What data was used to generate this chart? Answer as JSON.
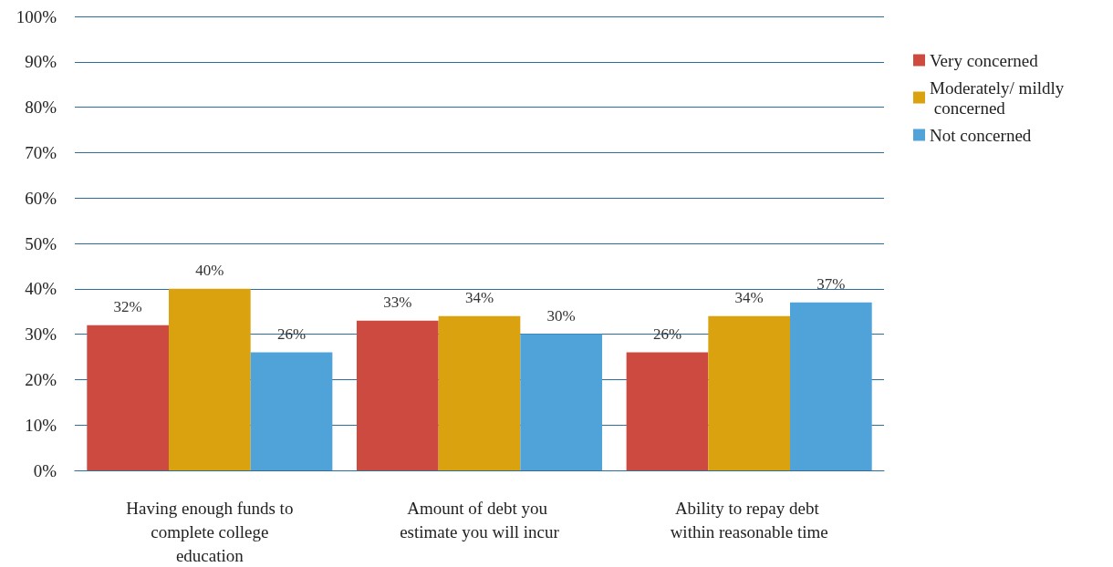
{
  "chart_data": {
    "type": "bar",
    "categories": [
      "Having enough funds to complete college education",
      "Amount of debt you estimate you will incur",
      "Ability to repay debt within reasonable time"
    ],
    "series": [
      {
        "name": "Very concerned",
        "color": "#cc4a3f",
        "values": [
          32,
          33,
          26
        ],
        "value_labels": [
          "32%",
          "33%",
          "26%"
        ]
      },
      {
        "name": "Moderately/ mildly concerned",
        "color": "#d9a20e",
        "values": [
          40,
          34,
          34
        ],
        "value_labels": [
          "40%",
          "34%",
          "34%"
        ]
      },
      {
        "name": "Not concerned",
        "color": "#4fa3d8",
        "values": [
          26,
          30,
          37
        ],
        "value_labels": [
          "26%",
          "30%",
          "37%"
        ]
      }
    ],
    "ylim": [
      0,
      100
    ],
    "yticks": [
      {
        "value": 0,
        "label": "0%"
      },
      {
        "value": 10,
        "label": "10%"
      },
      {
        "value": 20,
        "label": "20%"
      },
      {
        "value": 30,
        "label": "30%"
      },
      {
        "value": 40,
        "label": "40%"
      },
      {
        "value": 50,
        "label": "50%"
      },
      {
        "value": 60,
        "label": "60%"
      },
      {
        "value": 70,
        "label": "70%"
      },
      {
        "value": 80,
        "label": "80%"
      },
      {
        "value": 90,
        "label": "90%"
      },
      {
        "value": 100,
        "label": "100%"
      }
    ],
    "grid": "y",
    "legend": "top right"
  }
}
